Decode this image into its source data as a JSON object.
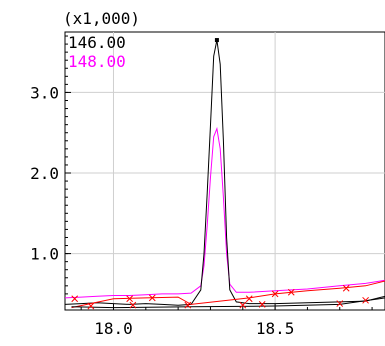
{
  "chart_data": {
    "type": "line",
    "multiplier_label": "(x1,000)",
    "xlim": [
      17.85,
      18.84
    ],
    "ylim": [
      0.3,
      3.75
    ],
    "x_ticks": [
      {
        "value": 18.0,
        "label": "18.0"
      },
      {
        "value": 18.5,
        "label": "18.5"
      }
    ],
    "y_ticks": [
      {
        "value": 1.0,
        "label": "1.0"
      },
      {
        "value": 2.0,
        "label": "2.0"
      },
      {
        "value": 3.0,
        "label": "3.0"
      }
    ],
    "grid": true,
    "legend_position": "top-left",
    "series": [
      {
        "name": "146.00",
        "color": "#000000",
        "x": [
          17.85,
          17.9,
          17.95,
          18.0,
          18.05,
          18.1,
          18.15,
          18.2,
          18.24,
          18.27,
          18.28,
          18.29,
          18.3,
          18.31,
          18.32,
          18.33,
          18.34,
          18.35,
          18.36,
          18.38,
          18.42,
          18.5,
          18.6,
          18.7,
          18.78,
          18.84
        ],
        "y": [
          0.37,
          0.38,
          0.39,
          0.38,
          0.37,
          0.38,
          0.37,
          0.36,
          0.37,
          0.55,
          1.0,
          1.75,
          2.6,
          3.45,
          3.65,
          3.35,
          2.4,
          1.2,
          0.55,
          0.4,
          0.38,
          0.38,
          0.39,
          0.4,
          0.41,
          0.47
        ]
      },
      {
        "name": "148.00",
        "color": "#ff00ff",
        "x": [
          17.85,
          17.9,
          17.95,
          18.0,
          18.05,
          18.1,
          18.15,
          18.2,
          18.24,
          18.27,
          18.28,
          18.29,
          18.3,
          18.31,
          18.32,
          18.33,
          18.34,
          18.35,
          18.36,
          18.38,
          18.42,
          18.5,
          18.6,
          18.7,
          18.78,
          18.84
        ],
        "y": [
          0.45,
          0.46,
          0.47,
          0.48,
          0.48,
          0.49,
          0.5,
          0.5,
          0.51,
          0.6,
          0.85,
          1.35,
          1.95,
          2.45,
          2.55,
          2.3,
          1.7,
          1.0,
          0.62,
          0.52,
          0.52,
          0.54,
          0.56,
          0.6,
          0.63,
          0.67
        ]
      }
    ],
    "peak_markers": [
      {
        "x": 18.32,
        "y": 3.65,
        "color": "#000000"
      }
    ],
    "baselines": [
      {
        "color": "#ff0000",
        "points": [
          [
            17.87,
            0.33
          ],
          [
            18.0,
            0.44
          ],
          [
            18.1,
            0.45
          ],
          [
            18.2,
            0.46
          ],
          [
            18.24,
            0.37
          ],
          [
            18.42,
            0.45
          ],
          [
            18.5,
            0.5
          ],
          [
            18.6,
            0.54
          ],
          [
            18.7,
            0.57
          ],
          [
            18.78,
            0.6
          ],
          [
            18.84,
            0.66
          ]
        ]
      },
      {
        "color": "#000000",
        "points": [
          [
            17.87,
            0.34
          ],
          [
            18.0,
            0.33
          ],
          [
            18.24,
            0.34
          ],
          [
            18.5,
            0.35
          ],
          [
            18.7,
            0.37
          ],
          [
            18.84,
            0.45
          ]
        ]
      }
    ],
    "markers": [
      {
        "x": 17.88,
        "y": 0.44,
        "color": "#ff0000"
      },
      {
        "x": 17.93,
        "y": 0.35,
        "color": "#ff0000"
      },
      {
        "x": 18.05,
        "y": 0.44,
        "color": "#ff0000"
      },
      {
        "x": 18.06,
        "y": 0.36,
        "color": "#ff0000"
      },
      {
        "x": 18.12,
        "y": 0.45,
        "color": "#ff0000"
      },
      {
        "x": 18.23,
        "y": 0.36,
        "color": "#ff0000"
      },
      {
        "x": 18.4,
        "y": 0.36,
        "color": "#ff0000"
      },
      {
        "x": 18.42,
        "y": 0.44,
        "color": "#ff0000"
      },
      {
        "x": 18.46,
        "y": 0.37,
        "color": "#ff0000"
      },
      {
        "x": 18.5,
        "y": 0.5,
        "color": "#ff0000"
      },
      {
        "x": 18.55,
        "y": 0.52,
        "color": "#ff0000"
      },
      {
        "x": 18.7,
        "y": 0.38,
        "color": "#ff0000"
      },
      {
        "x": 18.72,
        "y": 0.57,
        "color": "#ff0000"
      },
      {
        "x": 18.78,
        "y": 0.42,
        "color": "#ff0000"
      }
    ]
  }
}
